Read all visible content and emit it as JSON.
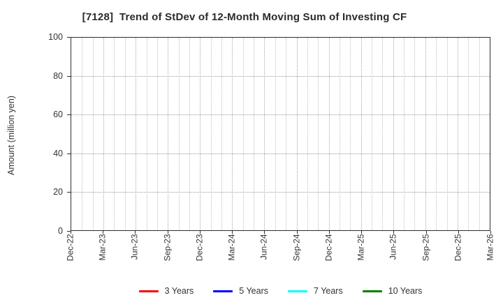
{
  "chart_data": {
    "type": "line",
    "title": "[7128]  Trend of StDev of 12-Month Moving Sum of Investing CF",
    "ylabel": "Amount (million yen)",
    "xlabel": "",
    "ylim": [
      0,
      100
    ],
    "yticks": [
      0,
      20,
      40,
      60,
      80,
      100
    ],
    "x_tick_labels": [
      "Dec-22",
      "Mar-23",
      "Jun-23",
      "Sep-23",
      "Dec-23",
      "Mar-24",
      "Jun-24",
      "Sep-24",
      "Dec-24",
      "Mar-25",
      "Jun-25",
      "Sep-25",
      "Dec-25",
      "Mar-26"
    ],
    "months_per_major_tick": 3,
    "grid": {
      "vertical": "monthly dotted",
      "horizontal": "at yticks dotted",
      "legend_position": "bottom"
    },
    "series": [
      {
        "name": "3 Years",
        "color": "#ff0000",
        "values": []
      },
      {
        "name": "5 Years",
        "color": "#0000ff",
        "values": []
      },
      {
        "name": "7 Years",
        "color": "#00ffff",
        "values": []
      },
      {
        "name": "10 Years",
        "color": "#008000",
        "values": []
      }
    ]
  }
}
